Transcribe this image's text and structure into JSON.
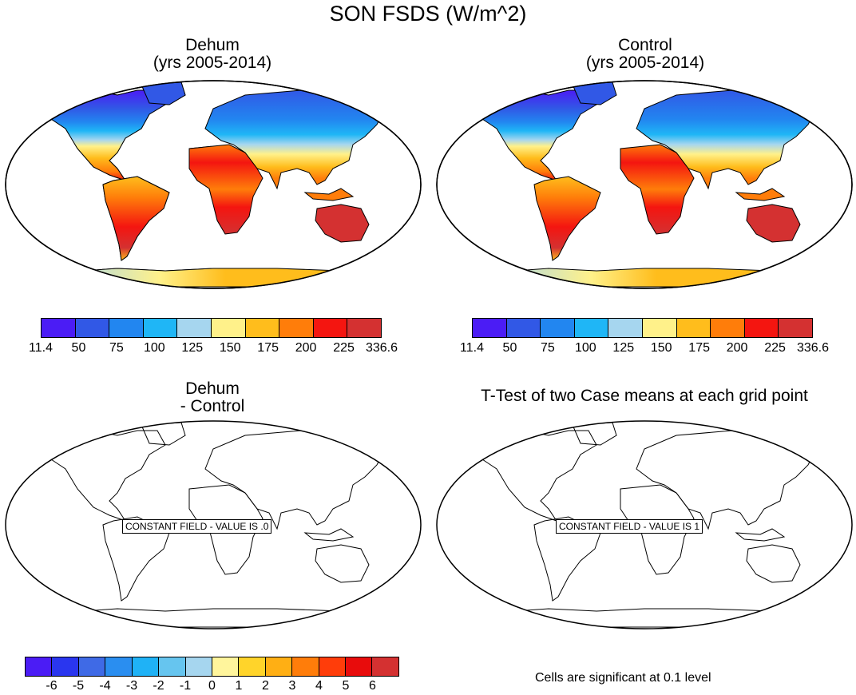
{
  "figure": {
    "title": "SON FSDS (W/m^2)"
  },
  "panels": {
    "top_left": {
      "title_line1": "Dehum",
      "title_line2": "(yrs 2005-2014)"
    },
    "top_right": {
      "title_line1": "Control",
      "title_line2": "(yrs 2005-2014)"
    },
    "bottom_left": {
      "title_line1": "Dehum",
      "title_line2": "- Control",
      "message": "CONSTANT FIELD - VALUE IS .0"
    },
    "bottom_right": {
      "title_line1": "T-Test of two Case means at each grid point",
      "message": "CONSTANT FIELD - VALUE IS 1",
      "note": "Cells are significant at 0.1 level"
    }
  },
  "colorbars": {
    "abs": {
      "colors": [
        "#4b1cf5",
        "#3158e6",
        "#2286f0",
        "#1fb6f6",
        "#a6d6ef",
        "#fff18a",
        "#ffbd1c",
        "#ff7d0a",
        "#f41510",
        "#d43131"
      ],
      "labels": [
        "11.4",
        "50",
        "75",
        "100",
        "125",
        "150",
        "175",
        "200",
        "225",
        "336.6"
      ]
    },
    "diff": {
      "colors": [
        "#4b1cf5",
        "#2a36ef",
        "#3f6ae6",
        "#2a8ef0",
        "#1fb2f6",
        "#66c5ef",
        "#a6d6ef",
        "#fff59c",
        "#ffd42a",
        "#ffaf14",
        "#ff7d0a",
        "#ff3d0a",
        "#e80c0c",
        "#d43131"
      ],
      "labels": [
        "-6",
        "-5",
        "-4",
        "-3",
        "-2",
        "-1",
        "0",
        "1",
        "2",
        "3",
        "4",
        "5",
        "6"
      ]
    }
  },
  "chart_data": [
    {
      "type": "heatmap",
      "title": "Dehum (yrs 2005-2014)",
      "variable": "FSDS",
      "season": "SON",
      "units": "W/m^2",
      "color_levels": [
        11.4,
        50,
        75,
        100,
        125,
        150,
        175,
        200,
        225,
        336.6
      ]
    },
    {
      "type": "heatmap",
      "title": "Control (yrs 2005-2014)",
      "variable": "FSDS",
      "season": "SON",
      "units": "W/m^2",
      "color_levels": [
        11.4,
        50,
        75,
        100,
        125,
        150,
        175,
        200,
        225,
        336.6
      ]
    },
    {
      "type": "heatmap",
      "title": "Dehum - Control",
      "constant_value": 0,
      "color_levels": [
        -6,
        -5,
        -4,
        -3,
        -2,
        -1,
        0,
        1,
        2,
        3,
        4,
        5,
        6
      ]
    },
    {
      "type": "heatmap",
      "title": "T-Test of two Case means at each grid point",
      "constant_value": 1,
      "significance_level": 0.1
    }
  ]
}
